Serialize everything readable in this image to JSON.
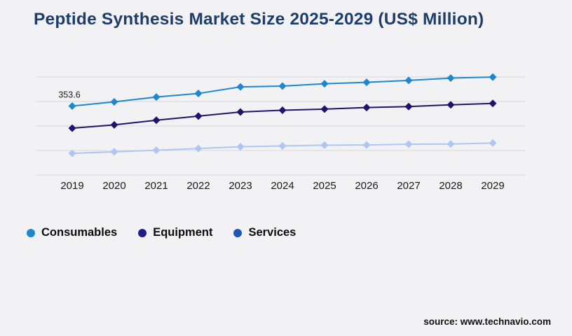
{
  "title": "Peptide Synthesis Market Size 2025-2029 (US$ Million)",
  "source": "source: www.technavio.com",
  "colors": {
    "background": "#f2f2f4",
    "title": "#1f3d6b",
    "grid": "#d8d8db",
    "tick": "#1a1a1a",
    "data_label": "#222222",
    "source_text": "#121212"
  },
  "legend": {
    "position": "bottom-left",
    "items": [
      {
        "label": "Consumables",
        "color": "#1d87d2"
      },
      {
        "label": "Equipment",
        "color": "#211c8c"
      },
      {
        "label": "Services",
        "color": "#1d55b8"
      }
    ]
  },
  "chart_data": {
    "type": "line",
    "title": "Peptide Synthesis Market Size 2025-2029 (US$ Million)",
    "categories": [
      "2019",
      "2020",
      "2021",
      "2022",
      "2023",
      "2024",
      "2025",
      "2026",
      "2027",
      "2028",
      "2029"
    ],
    "series": [
      {
        "name": "Consumables",
        "color": "#1d87d2",
        "marker": "diamond",
        "values": [
          353.6,
          375,
          400,
          418,
          452,
          456,
          468,
          475,
          485,
          497,
          502
        ]
      },
      {
        "name": "Equipment",
        "color": "#1d1470",
        "marker": "diamond",
        "values": [
          240,
          257,
          281,
          302,
          323,
          332,
          338,
          346,
          351,
          360,
          367
        ]
      },
      {
        "name": "Services",
        "color": "#aec6f1",
        "marker": "diamond",
        "values": [
          111,
          119,
          127,
          136,
          145,
          149,
          153,
          154,
          158,
          159,
          164
        ]
      }
    ],
    "xlabel": "",
    "ylabel": "",
    "ylim": [
      0,
      560
    ],
    "grid": "horizontal",
    "gridline_count": 5,
    "legend_position": "bottom-left",
    "data_labels": [
      {
        "series": "Consumables",
        "category": "2019",
        "text": "353.6"
      }
    ]
  }
}
